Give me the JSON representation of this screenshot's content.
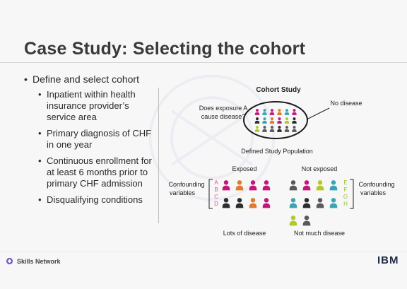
{
  "slide": {
    "title": "Case Study: Selecting the cohort",
    "bullets": [
      {
        "level": 1,
        "text": "Define and select cohort"
      },
      {
        "level": 2,
        "lines": [
          "Inpatient within health",
          "insurance provider’s",
          "service area"
        ]
      },
      {
        "level": 2,
        "lines": [
          "Primary diagnosis of CHF",
          "in one year"
        ]
      },
      {
        "level": 2,
        "lines": [
          "Continuous enrollment for",
          "at least 6 months prior to",
          "primary CHF admission"
        ]
      },
      {
        "level": 2,
        "lines": [
          "Disqualifying conditions"
        ]
      }
    ]
  },
  "diagram": {
    "title": "Cohort Study",
    "question_lines": [
      "Does exposure A",
      "cause disease?"
    ],
    "no_disease": "No disease",
    "population_label": "Defined Study Population",
    "exposed": "Exposed",
    "not_exposed": "Not exposed",
    "confounding_left_lines": [
      "Confounding",
      "variables"
    ],
    "confounding_right_lines": [
      "Confounding",
      "variables"
    ],
    "letters_left": [
      "A",
      "B",
      "C",
      "D"
    ],
    "letters_right": [
      "E",
      "F",
      "G",
      "H"
    ],
    "lots_of_disease": "Lots of disease",
    "not_much_disease": "Not much disease",
    "colors": {
      "magenta": "#c2187a",
      "orange": "#e07a2c",
      "teal": "#3aa5b0",
      "lime": "#b5c82a",
      "black": "#2d2d2d",
      "gray": "#5a5a5a",
      "letters": "#e0529a"
    },
    "population_people": [
      [
        "magenta",
        "teal",
        "magenta",
        "orange",
        "teal",
        "magenta"
      ],
      [
        "black",
        "teal",
        "orange",
        "magenta",
        "lime",
        "black"
      ],
      [
        "lime",
        "gray",
        "gray",
        "black",
        "gray",
        "gray"
      ]
    ],
    "exposed_people": [
      [
        "magenta",
        "orange",
        "magenta",
        "magenta"
      ],
      [
        "black",
        "black",
        "orange",
        "magenta"
      ]
    ],
    "not_exposed_people": [
      [
        "gray",
        "magenta",
        "lime",
        "teal"
      ],
      [
        "teal",
        "black",
        "gray",
        "teal"
      ],
      [
        "lime",
        "gray"
      ]
    ]
  },
  "footer": {
    "brand": "Skills Network",
    "brand_icon": "skills-network-icon",
    "logo": "IBM"
  }
}
